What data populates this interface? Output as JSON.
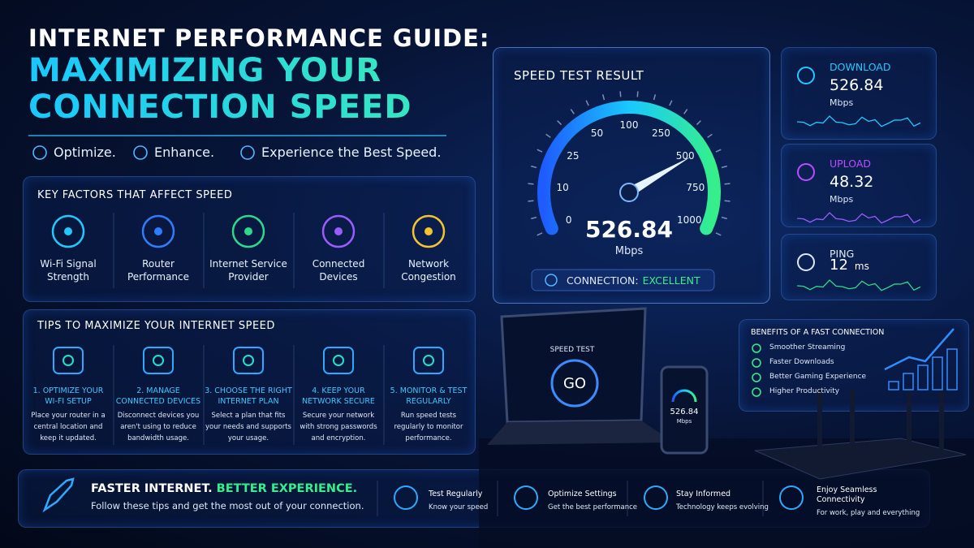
{
  "header": {
    "title": "INTERNET PERFORMANCE GUIDE:",
    "headline": [
      "MAXIMIZING YOUR",
      "CONNECTION SPEED"
    ],
    "taglines": [
      "Optimize.",
      "Enhance.",
      "Experience the Best Speed."
    ]
  },
  "key_factors": {
    "title": "KEY FACTORS THAT AFFECT SPEED",
    "items": [
      [
        "Wi-Fi Signal",
        "Strength"
      ],
      [
        "Router",
        "Performance"
      ],
      [
        "Internet Service",
        "Provider"
      ],
      [
        "Connected",
        "Devices"
      ],
      [
        "Network",
        "Congestion"
      ]
    ]
  },
  "tips": {
    "title": "TIPS TO MAXIMIZE YOUR INTERNET SPEED",
    "items": [
      {
        "title": [
          "1. OPTIMIZE YOUR",
          "WI-FI SETUP"
        ],
        "text": [
          "Place your router in a",
          "central location and",
          "keep it updated."
        ]
      },
      {
        "title": [
          "2. MANAGE",
          "CONNECTED DEVICES"
        ],
        "text": [
          "Disconnect devices you",
          "aren't using to reduce",
          "bandwidth usage."
        ]
      },
      {
        "title": [
          "3. CHOOSE THE RIGHT",
          "INTERNET PLAN"
        ],
        "text": [
          "Select a plan that fits",
          "your needs and supports",
          "your usage."
        ]
      },
      {
        "title": [
          "4. KEEP YOUR",
          "NETWORK SECURE"
        ],
        "text": [
          "Secure your network",
          "with strong passwords",
          "and encryption."
        ]
      },
      {
        "title": [
          "5. MONITOR & TEST",
          "REGULARLY"
        ],
        "text": [
          "Run speed tests",
          "regularly to monitor",
          "performance."
        ]
      }
    ]
  },
  "speed_test": {
    "title": "SPEED TEST RESULT",
    "scale": [
      "0",
      "10",
      "25",
      "50",
      "100",
      "250",
      "500",
      "750",
      "1000"
    ],
    "value": "526.84",
    "unit": "Mbps",
    "connection_label": "CONNECTION:",
    "connection_status": "EXCELLENT"
  },
  "stats": [
    {
      "label": "DOWNLOAD",
      "value": "526.84",
      "unit": "Mbps"
    },
    {
      "label": "UPLOAD",
      "value": "48.32",
      "unit": "Mbps"
    },
    {
      "label": "PING",
      "value": "12",
      "unit": "ms"
    }
  ],
  "devices": {
    "laptop_label": "SPEED TEST",
    "button": "GO",
    "phone_value": "526.84",
    "phone_unit": "Mbps"
  },
  "benefits": {
    "title": "BENEFITS OF A FAST CONNECTION",
    "items": [
      "Smoother Streaming",
      "Faster Downloads",
      "Better Gaming Experience",
      "Higher Productivity"
    ]
  },
  "footer": {
    "headline": "FASTER INTERNET.",
    "highlight": "BETTER EXPERIENCE.",
    "text": "Follow these tips and get the most out of your connection.",
    "items": [
      {
        "title": [
          "Test Regularly"
        ],
        "text": "Know your speed"
      },
      {
        "title": [
          "Optimize Settings"
        ],
        "text": "Get the best performance"
      },
      {
        "title": [
          "Stay Informed"
        ],
        "text": "Technology keeps evolving"
      },
      {
        "title": [
          "Enjoy Seamless",
          "Connectivity"
        ],
        "text": "For work, play and everything"
      }
    ]
  }
}
